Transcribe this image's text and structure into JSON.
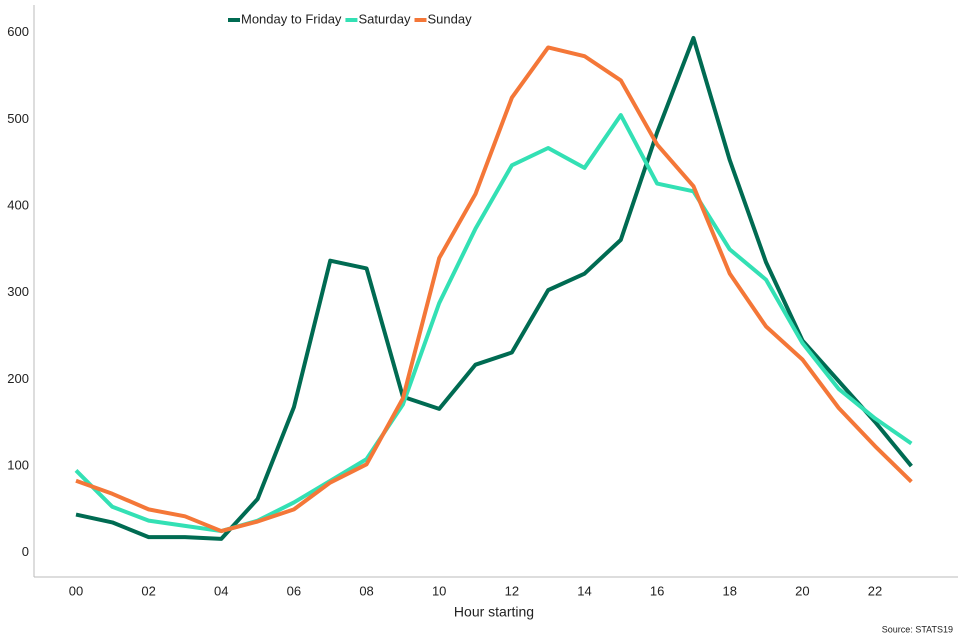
{
  "chart_data": {
    "type": "line",
    "x_label": "Hour starting",
    "source": "Source: STATS19",
    "categories": [
      "00",
      null,
      "02",
      null,
      "04",
      null,
      "06",
      null,
      "08",
      null,
      "10",
      null,
      "12",
      null,
      "14",
      null,
      "16",
      null,
      "18",
      null,
      "20",
      null,
      "22",
      null
    ],
    "series": [
      {
        "name": "Monday to Friday",
        "color": "#006b52",
        "values": [
          44,
          35,
          18,
          18,
          16,
          62,
          168,
          337,
          328,
          180,
          166,
          217,
          231,
          303,
          322,
          361,
          485,
          594,
          453,
          335,
          245,
          198,
          151,
          100
        ]
      },
      {
        "name": "Saturday",
        "color": "#33e0b4",
        "values": [
          95,
          53,
          37,
          31,
          25,
          37,
          58,
          83,
          108,
          171,
          288,
          374,
          447,
          467,
          444,
          505,
          426,
          417,
          350,
          315,
          242,
          189,
          155,
          126
        ]
      },
      {
        "name": "Sunday",
        "color": "#f47738",
        "values": [
          83,
          68,
          50,
          42,
          25,
          36,
          50,
          81,
          102,
          178,
          340,
          414,
          525,
          583,
          573,
          545,
          471,
          423,
          322,
          261,
          223,
          167,
          123,
          82
        ]
      }
    ],
    "ylim": [
      -28,
      632
    ],
    "yticks": [
      0,
      100,
      200,
      300,
      400,
      500,
      600
    ],
    "grid": false,
    "legend": "top"
  }
}
